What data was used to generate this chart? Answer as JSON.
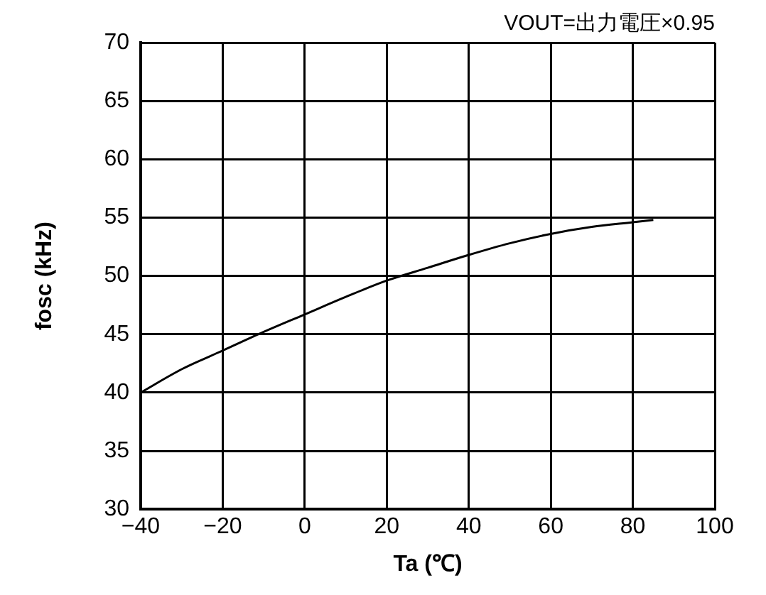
{
  "chart_data": {
    "type": "line",
    "title": "VOUT=出力電圧×0.95",
    "xlabel": "Ta (℃)",
    "ylabel": "fosc (kHz)",
    "x": [
      -40,
      -30,
      -20,
      -10,
      0,
      10,
      20,
      30,
      40,
      50,
      60,
      70,
      80,
      85
    ],
    "series": [
      {
        "color": "#000000",
        "values": [
          40,
          42,
          43.6,
          45.2,
          46.7,
          48.2,
          49.6,
          50.7,
          51.8,
          52.8,
          53.6,
          54.2,
          54.6,
          54.8
        ]
      }
    ],
    "xlim": [
      -40,
      100
    ],
    "xticks": [
      {
        "value": -40,
        "label": "−40"
      },
      {
        "value": -20,
        "label": "−20"
      },
      0,
      20,
      40,
      60,
      80,
      100
    ],
    "ylim": [
      30,
      70
    ],
    "yticks": [
      30,
      35,
      40,
      45,
      50,
      55,
      60,
      65,
      70
    ],
    "grid": true,
    "legend": false,
    "marker": "none",
    "line_style": "solid"
  }
}
